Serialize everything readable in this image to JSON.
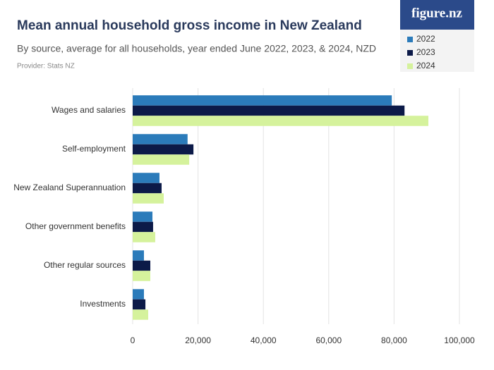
{
  "chart_data": {
    "type": "hbar",
    "title": "Mean annual household gross income in New Zealand",
    "subtitle": "By source, average for all households, year ended June 2022, 2023, & 2024, NZD",
    "provider": "Provider: Stats NZ",
    "brand": "figure.nz",
    "categories": [
      "Wages and salaries",
      "Self-employment",
      "New Zealand Superannuation",
      "Other government benefits",
      "Other regular sources",
      "Investments"
    ],
    "series": [
      {
        "name": "2022",
        "color": "#2b7bba",
        "values": [
          79300,
          16800,
          8200,
          6050,
          3450,
          3450
        ]
      },
      {
        "name": "2023",
        "color": "#0c1a48",
        "values": [
          83200,
          18600,
          8850,
          6250,
          5400,
          3900
        ]
      },
      {
        "name": "2024",
        "color": "#d5f29c",
        "values": [
          90500,
          17300,
          9500,
          6900,
          5400,
          4750
        ]
      }
    ],
    "xlim": [
      0,
      100000
    ],
    "xticks": [
      0,
      {
        "value": 20000,
        "label": "20,000"
      },
      {
        "value": 40000,
        "label": "40,000"
      },
      {
        "value": 60000,
        "label": "60,000"
      },
      {
        "value": 80000,
        "label": "80,000"
      },
      {
        "value": 100000,
        "label": "100,000"
      }
    ],
    "grid": true
  }
}
